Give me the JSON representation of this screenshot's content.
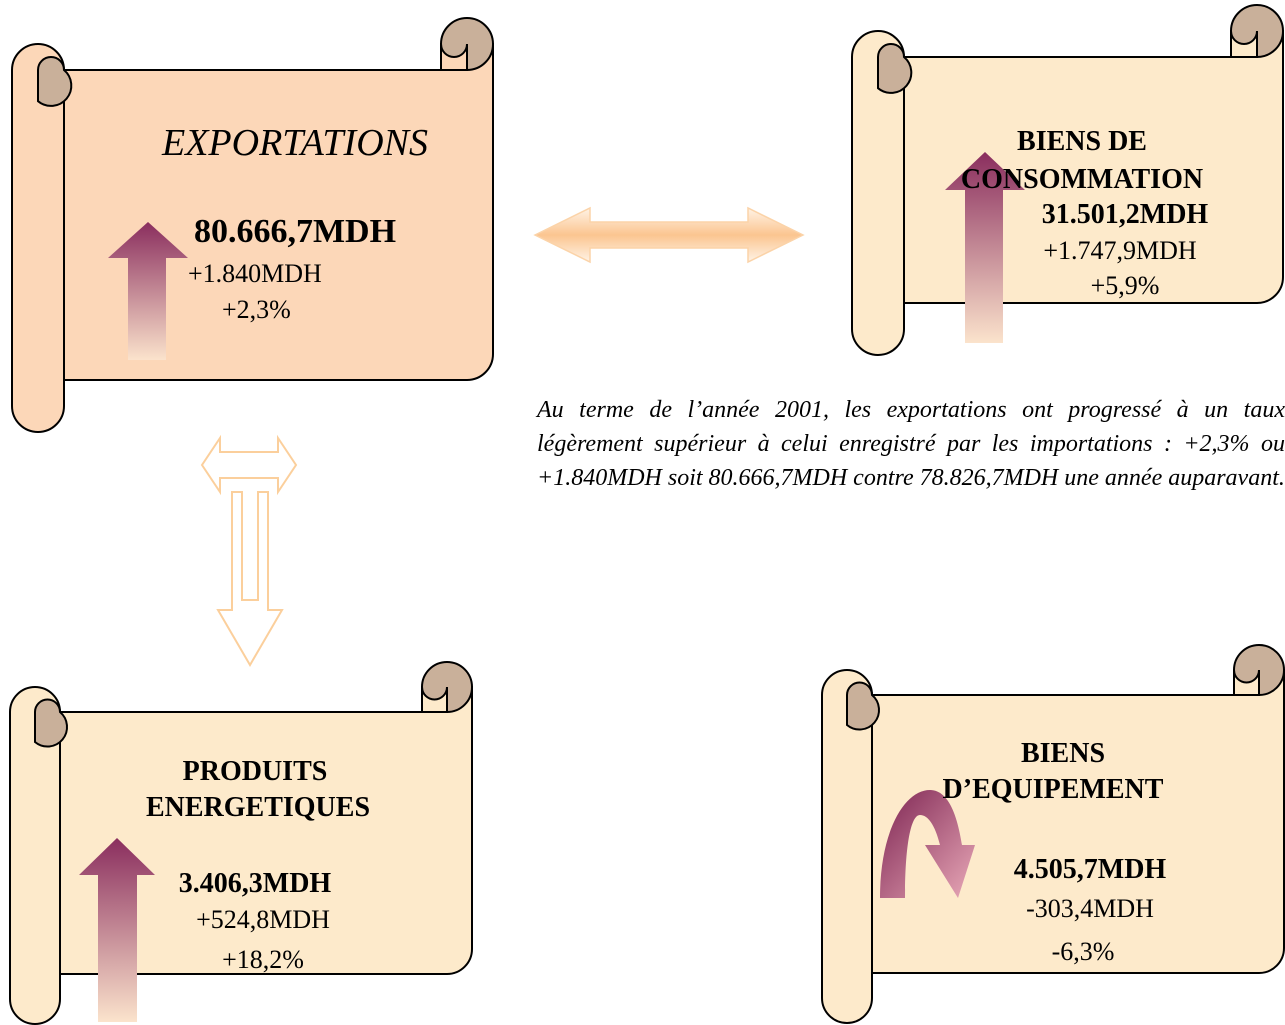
{
  "scrolls": [
    {
      "title": [
        "EXPORTATIONS"
      ],
      "amount": "80.666,7MDH",
      "change": "+1.840MDH",
      "rate": "+2,3%"
    },
    {
      "title": [
        "BIENS DE",
        "CONSOMMATION"
      ],
      "amount": "31.501,2MDH",
      "change": "+1.747,9MDH",
      "rate": "+5,9%"
    },
    {
      "title": [
        "PRODUITS",
        "ENERGETIQUES"
      ],
      "amount": "3.406,3MDH",
      "change": "+524,8MDH",
      "rate": "+18,2%"
    },
    {
      "title": [
        "BIENS",
        "D’EQUIPEMENT"
      ],
      "amount": "4.505,7MDH",
      "change": "-303,4MDH",
      "rate": "-6,3%"
    }
  ],
  "note": "Au terme de l’année 2001, les exportations ont progressé à un taux légèrement supérieur à celui enregistré par les importations : +2,3% ou +1.840MDH soit 80.666,7MDH contre 78.826,7MDH une année auparavant."
}
